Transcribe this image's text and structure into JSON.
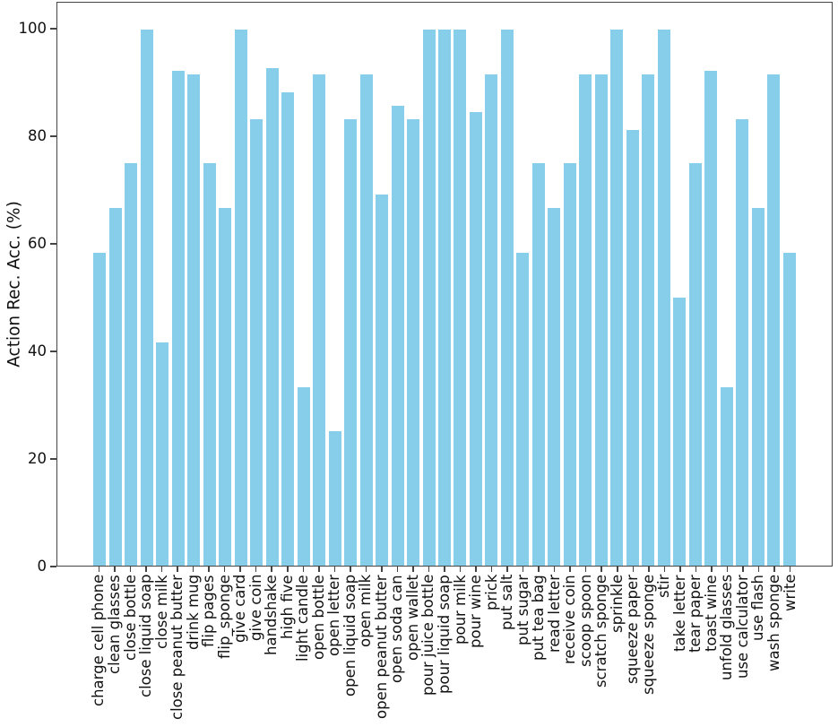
{
  "chart_data": {
    "type": "bar",
    "title": "",
    "xlabel": "",
    "ylabel": "Action Rec. Acc. (%)",
    "ylim": [
      0,
      105
    ],
    "yticks": [
      0,
      20,
      40,
      60,
      80,
      100
    ],
    "grid": false,
    "legend": false,
    "bar_color": "#87CEEB",
    "axis_color": "#454545",
    "text_color": "#111111",
    "categories": [
      "charge cell phone",
      "clean glasses",
      "close bottle",
      "close liquid soap",
      "close milk",
      "close peanut butter",
      "drink mug",
      "flip pages",
      "flip_sponge",
      "give card",
      "give coin",
      "handshake",
      "high five",
      "light candle",
      "open bottle",
      "open letter",
      "open liquid soap",
      "open milk",
      "open peanut butter",
      "open soda can",
      "open wallet",
      "pour juice bottle",
      "pour liquid soap",
      "pour milk",
      "pour wine",
      "prick",
      "put salt",
      "put sugar",
      "put tea bag",
      "read letter",
      "receive coin",
      "scoop spoon",
      "scratch sponge",
      "sprinkle",
      "squeeze paper",
      "squeeze sponge",
      "stir",
      "take letter",
      "tear paper",
      "toast wine",
      "unfold glasses",
      "use calculator",
      "use flash",
      "wash sponge",
      "write"
    ],
    "values": [
      58.33,
      66.67,
      75.0,
      100.0,
      41.67,
      92.31,
      91.67,
      75.0,
      66.67,
      100.0,
      83.33,
      92.86,
      88.24,
      33.33,
      91.67,
      25.0,
      83.33,
      91.67,
      69.23,
      85.71,
      83.33,
      100.0,
      100.0,
      100.0,
      84.62,
      91.67,
      100.0,
      58.33,
      75.0,
      66.67,
      75.0,
      91.67,
      91.67,
      100.0,
      81.25,
      91.67,
      100.0,
      50.0,
      75.0,
      92.31,
      33.33,
      83.33,
      66.67,
      91.67,
      58.33
    ]
  }
}
